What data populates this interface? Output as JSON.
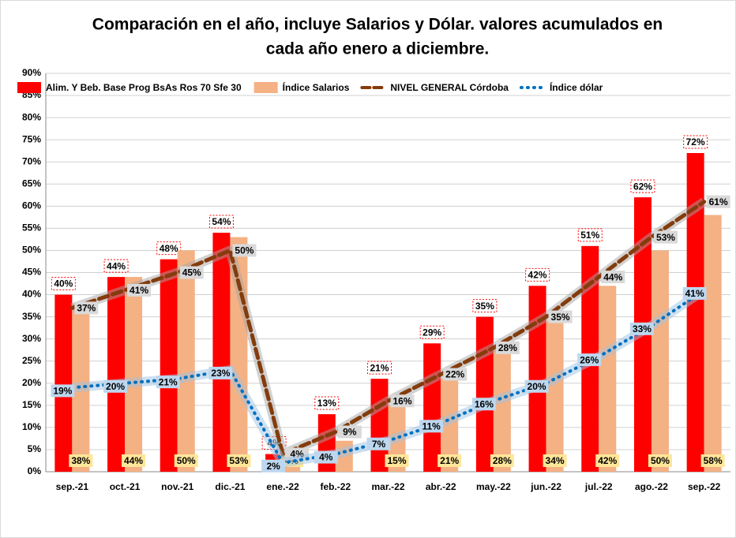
{
  "chart_data": {
    "type": "bar",
    "title": [
      "Comparación en el año, incluye Salarios y Dólar. valores  acumulados en",
      "cada año enero a diciembre."
    ],
    "categories": [
      "sep.-21",
      "oct.-21",
      "nov.-21",
      "dic.-21",
      "ene.-22",
      "feb.-22",
      "mar.-22",
      "abr.-22",
      "may.-22",
      "jun.-22",
      "jul.-22",
      "ago.-22",
      "sep.-22"
    ],
    "series": [
      {
        "name": "Alim. Y Beb.  Base Prog BsAs Ros 70 Sfe 30",
        "type": "bar",
        "color": "#ff0000",
        "values": [
          40,
          44,
          48,
          54,
          4,
          13,
          21,
          29,
          35,
          42,
          51,
          62,
          72
        ],
        "value_labels": [
          "40%",
          "44%",
          "48%",
          "54%",
          "4%",
          "13%",
          "21%",
          "29%",
          "35%",
          "42%",
          "51%",
          "62%",
          "72%"
        ]
      },
      {
        "name": "Índice Salarios",
        "type": "bar",
        "color": "#f4b183",
        "values": [
          38,
          44,
          50,
          53,
          4,
          7,
          15,
          21,
          28,
          34,
          42,
          50,
          58
        ],
        "value_labels": [
          "38%",
          "44%",
          "50%",
          "53%",
          "4%",
          null,
          "15%",
          "21%",
          "28%",
          "34%",
          "42%",
          "50%",
          "58%"
        ]
      },
      {
        "name": "NIVEL GENERAL Córdoba",
        "type": "line",
        "dash": "dash",
        "color": "#843c0c",
        "values": [
          37,
          41,
          45,
          50,
          4,
          9,
          16,
          22,
          28,
          35,
          44,
          53,
          61
        ],
        "value_labels": [
          "37%",
          "41%",
          "45%",
          "50%",
          "4%",
          "9%",
          "16%",
          "22%",
          "28%",
          "35%",
          "44%",
          "53%",
          "61%"
        ]
      },
      {
        "name": "Índice dólar",
        "type": "line",
        "dash": "dot",
        "color": "#0070c0",
        "values": [
          19,
          20,
          21,
          23,
          2,
          4,
          7,
          11,
          16,
          20,
          26,
          33,
          41
        ],
        "value_labels": [
          "19%",
          "20%",
          "21%",
          "23%",
          "2%",
          "4%",
          "7%",
          "11%",
          "16%",
          "20%",
          "26%",
          "33%",
          "41%"
        ]
      }
    ],
    "ylim": [
      0,
      90
    ],
    "yticks": [
      {
        "value": 0,
        "label": "0%"
      },
      {
        "value": 5,
        "label": "5%"
      },
      {
        "value": 10,
        "label": "10%"
      },
      {
        "value": 15,
        "label": "15%"
      },
      {
        "value": 20,
        "label": "20%"
      },
      {
        "value": 25,
        "label": "25%"
      },
      {
        "value": 30,
        "label": "30%"
      },
      {
        "value": 35,
        "label": "35%"
      },
      {
        "value": 40,
        "label": "40%"
      },
      {
        "value": 45,
        "label": "45%"
      },
      {
        "value": 50,
        "label": "50%"
      },
      {
        "value": 55,
        "label": "55%"
      },
      {
        "value": 60,
        "label": "60%"
      },
      {
        "value": 65,
        "label": "65%"
      },
      {
        "value": 70,
        "label": "70%"
      },
      {
        "value": 75,
        "label": "75%"
      },
      {
        "value": 80,
        "label": "80%"
      },
      {
        "value": 85,
        "label": "85%"
      },
      {
        "value": 90,
        "label": "90%"
      }
    ],
    "grid": true,
    "legend": "top"
  }
}
